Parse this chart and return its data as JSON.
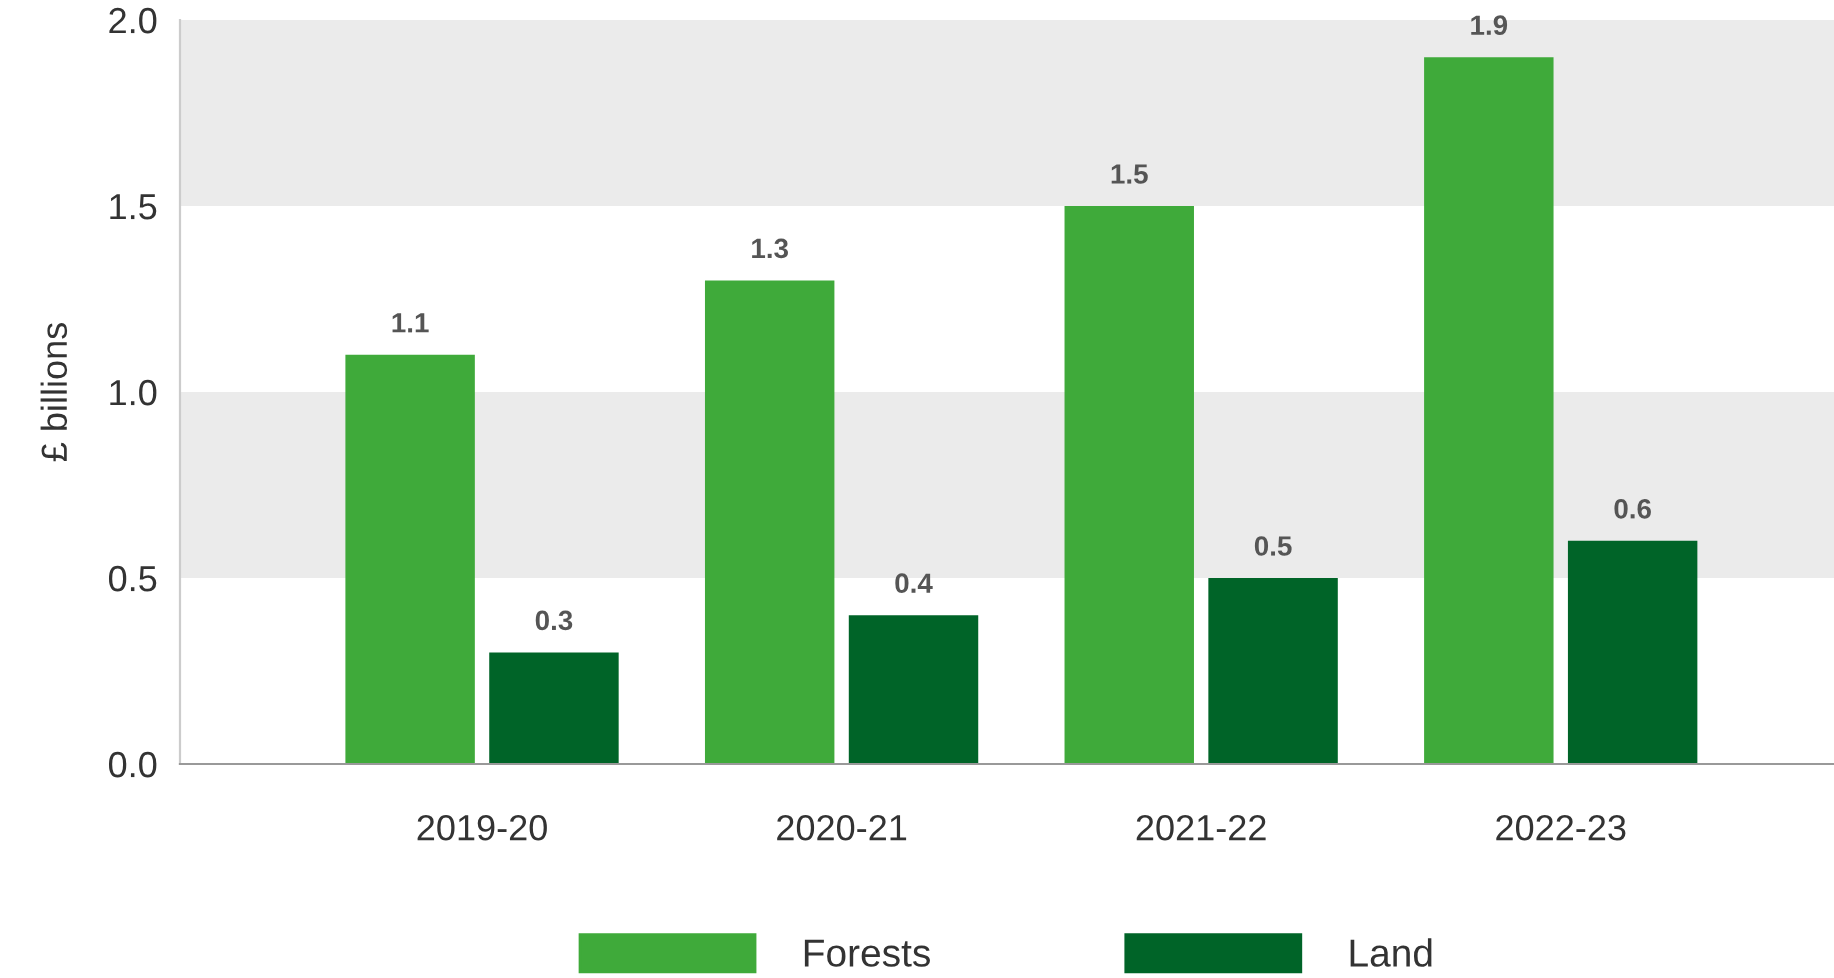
{
  "chart_data": {
    "type": "bar",
    "ylabel": "£ billions",
    "categories": [
      "2019-20",
      "2020-21",
      "2021-22",
      "2022-23"
    ],
    "series": [
      {
        "name": "Forests",
        "color": "#3faa3a",
        "values": [
          1.1,
          1.3,
          1.5,
          1.9
        ]
      },
      {
        "name": "Land",
        "color": "#006428",
        "values": [
          0.3,
          0.4,
          0.5,
          0.6
        ]
      }
    ],
    "ylim": [
      0,
      2
    ],
    "yticks": [
      {
        "value": 0,
        "label": "0.0"
      },
      {
        "value": 0.5,
        "label": "0.5"
      },
      {
        "value": 1,
        "label": "1.0"
      },
      {
        "value": 1.5,
        "label": "1.5"
      },
      {
        "value": 2,
        "label": "2.0"
      }
    ],
    "bands": [
      {
        "axis": "y",
        "from": 0.5,
        "to": 1.0,
        "color": "#ebebeb"
      },
      {
        "axis": "y",
        "from": 1.5,
        "to": 2.0,
        "color": "#ebebeb"
      }
    ],
    "data_labels": true,
    "legend": "bottom",
    "grid": false
  }
}
